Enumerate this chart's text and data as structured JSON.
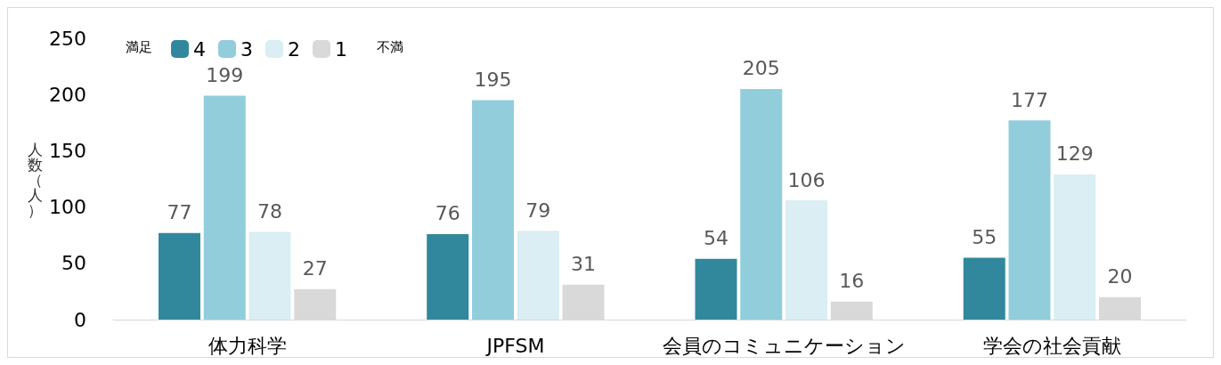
{
  "chart_data": {
    "type": "bar",
    "ylabel": "人数（人）",
    "legend_title": "満足",
    "annotations": [
      "不満"
    ],
    "categories": [
      "体力科学",
      "JPFSM",
      "会員のコミュニケーション",
      "学会の社会貢献"
    ],
    "series": [
      {
        "name": "4",
        "color": "#31889c",
        "values": [
          77,
          76,
          54,
          55
        ]
      },
      {
        "name": "3",
        "color": "#92cddc",
        "values": [
          199,
          195,
          205,
          177
        ]
      },
      {
        "name": "2",
        "color": "#daeef3",
        "values": [
          78,
          79,
          106,
          129
        ]
      },
      {
        "name": "1",
        "color": "#d9d9d9",
        "values": [
          27,
          31,
          16,
          20
        ]
      }
    ],
    "ylim": [
      0,
      250
    ],
    "yticks": [
      0,
      50,
      100,
      150,
      200,
      250
    ],
    "grid": false,
    "legend": "top left",
    "data_labels": true
  }
}
